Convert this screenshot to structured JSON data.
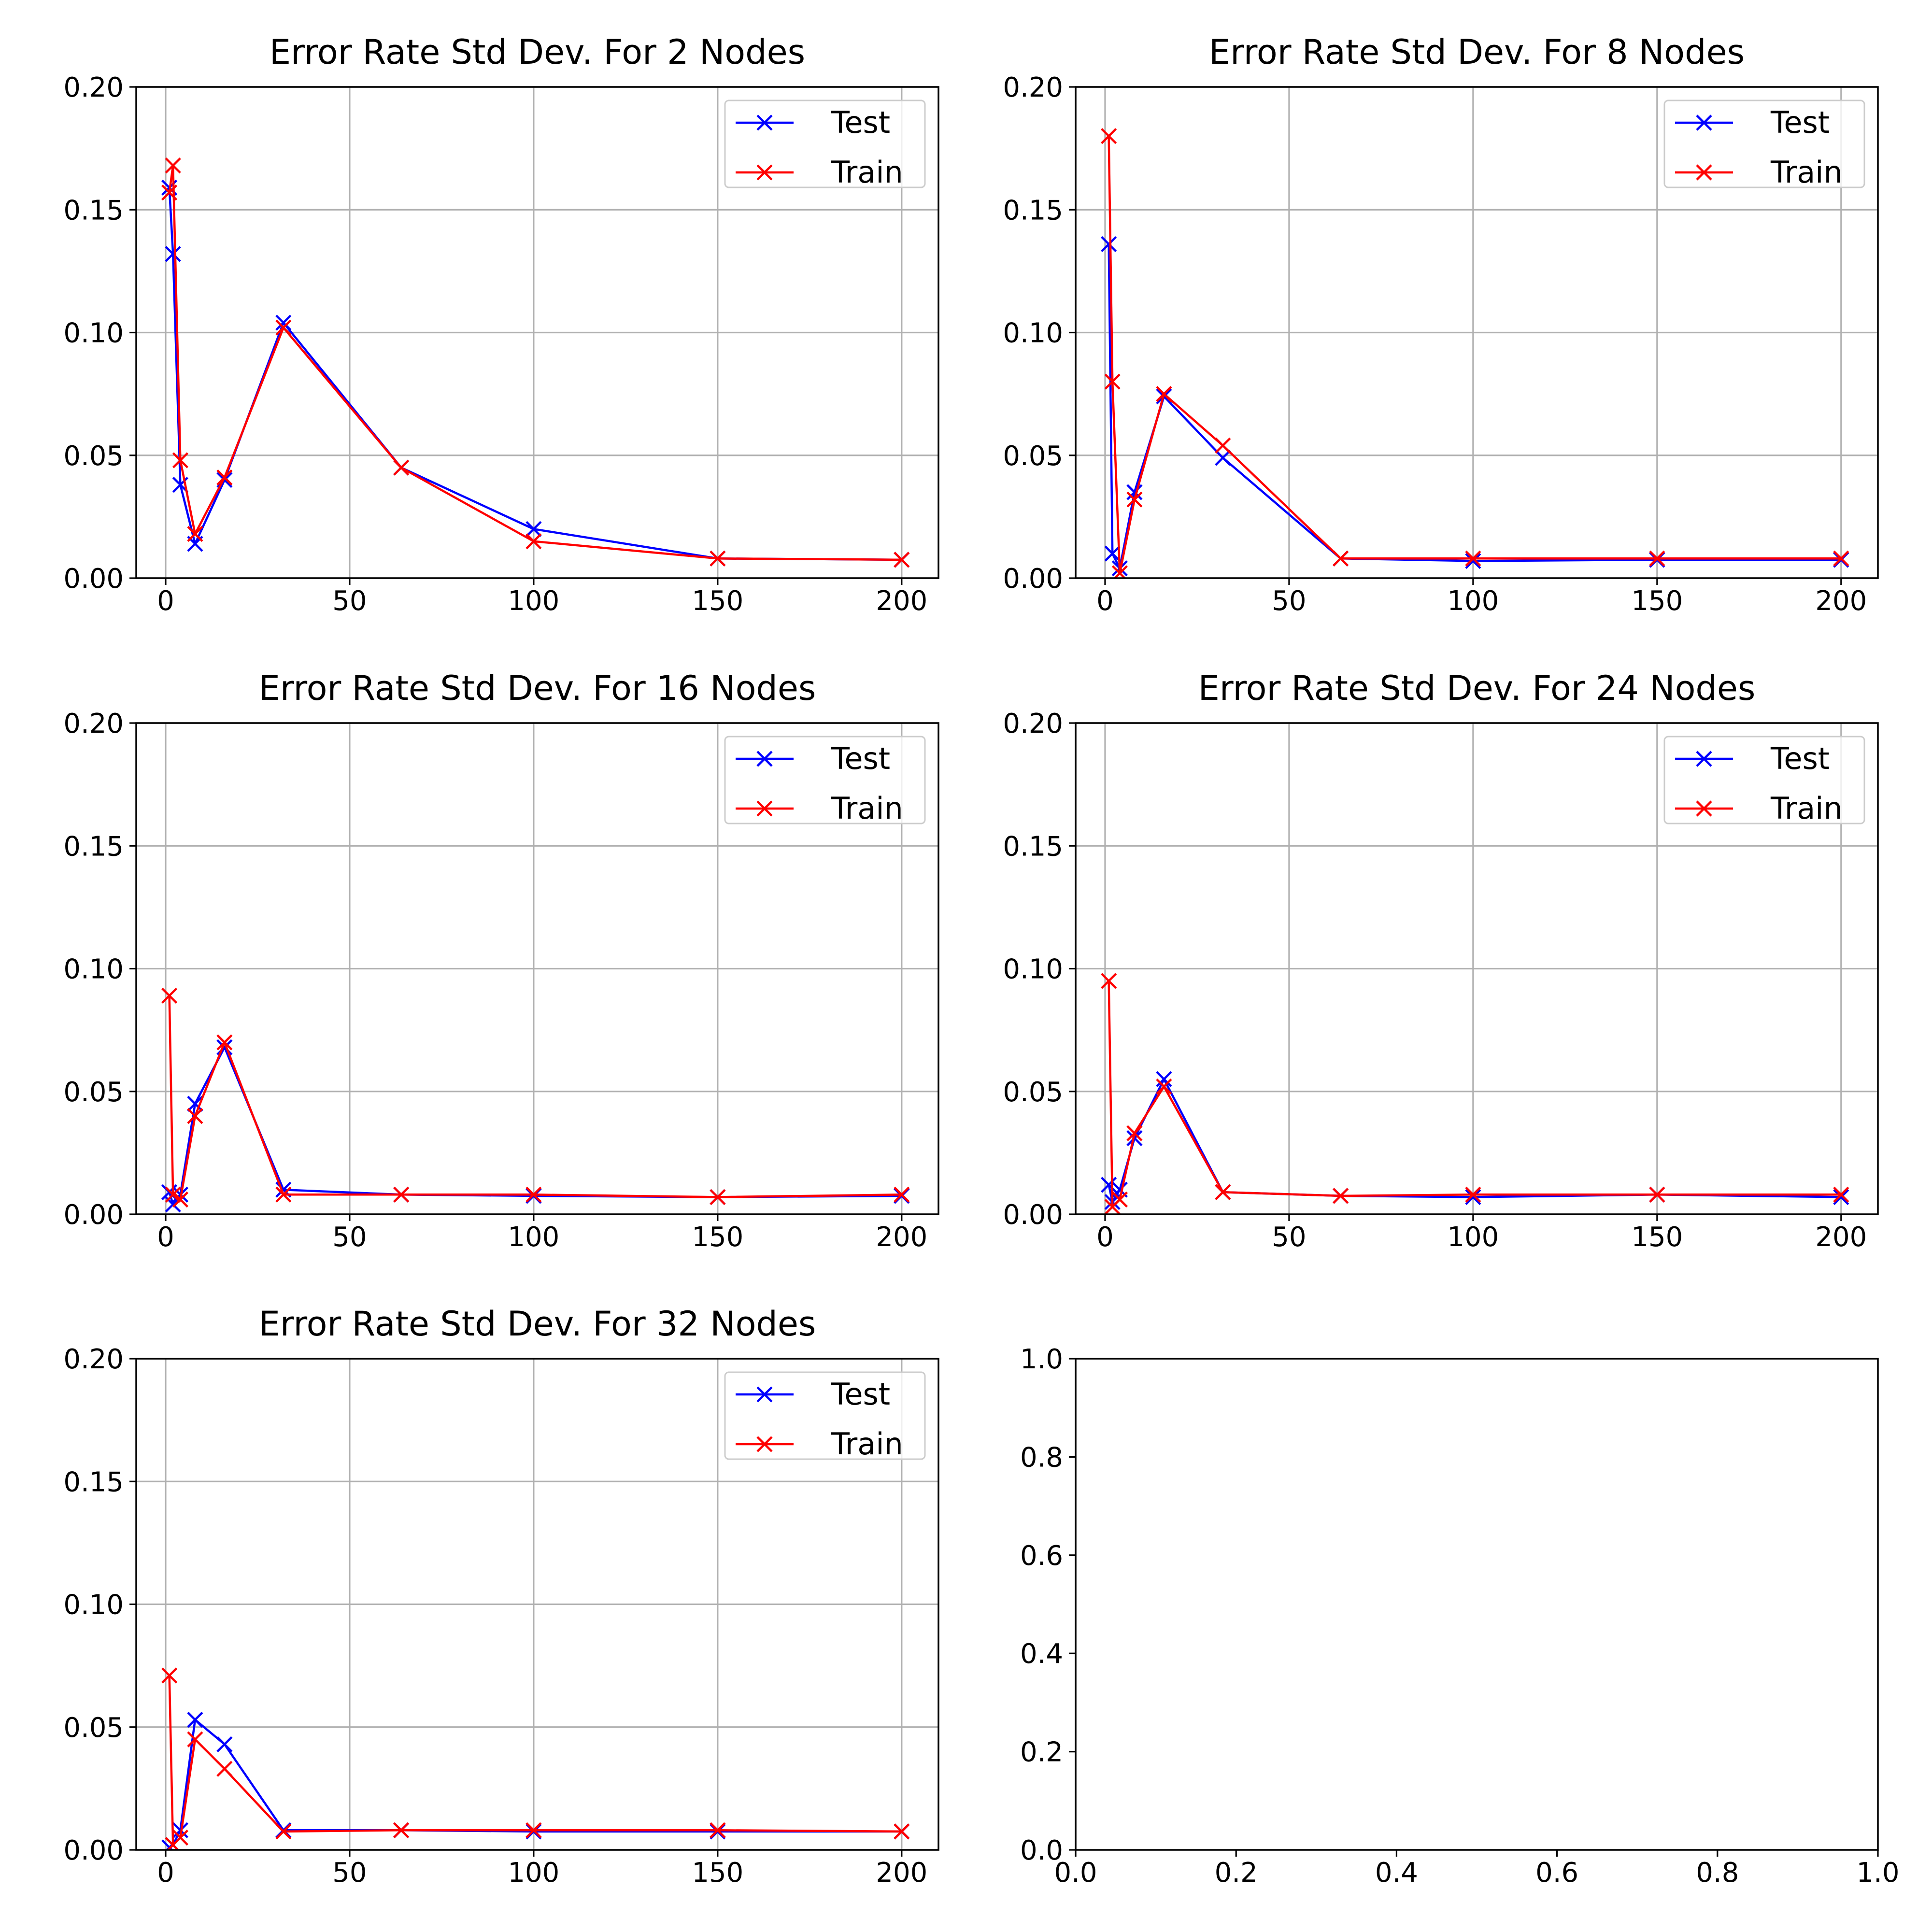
{
  "colors": {
    "test": "#0000ff",
    "train": "#ff0000",
    "grid": "#b0b0b0",
    "frame": "#000000"
  },
  "chart_data": [
    {
      "type": "line",
      "title": "Error Rate Std Dev. For 2 Nodes",
      "xlim": [
        -8,
        210
      ],
      "ylim": [
        0,
        0.2
      ],
      "xticks": [
        0,
        50,
        100,
        150,
        200
      ],
      "xtick_labels": [
        "0",
        "50",
        "100",
        "150",
        "200"
      ],
      "yticks": [
        0,
        0.05,
        0.1,
        0.15,
        0.2
      ],
      "ytick_labels": [
        "0.00",
        "0.05",
        "0.10",
        "0.15",
        "0.20"
      ],
      "grid": true,
      "legend": "upper-right",
      "marker": "x",
      "series": [
        {
          "name": "Test",
          "color": "#0000ff",
          "x": [
            1,
            2,
            4,
            8,
            16,
            32,
            64,
            100,
            150,
            200
          ],
          "y": [
            0.159,
            0.132,
            0.038,
            0.014,
            0.04,
            0.104,
            0.045,
            0.02,
            0.008,
            0.0075
          ]
        },
        {
          "name": "Train",
          "color": "#ff0000",
          "x": [
            1,
            2,
            4,
            8,
            16,
            32,
            64,
            100,
            150,
            200
          ],
          "y": [
            0.157,
            0.168,
            0.048,
            0.018,
            0.041,
            0.102,
            0.045,
            0.015,
            0.008,
            0.0075
          ]
        }
      ]
    },
    {
      "type": "line",
      "title": "Error Rate Std Dev. For 8 Nodes",
      "xlim": [
        -8,
        210
      ],
      "ylim": [
        0,
        0.2
      ],
      "xticks": [
        0,
        50,
        100,
        150,
        200
      ],
      "xtick_labels": [
        "0",
        "50",
        "100",
        "150",
        "200"
      ],
      "yticks": [
        0,
        0.05,
        0.1,
        0.15,
        0.2
      ],
      "ytick_labels": [
        "0.00",
        "0.05",
        "0.10",
        "0.15",
        "0.20"
      ],
      "grid": true,
      "legend": "upper-right",
      "marker": "x",
      "series": [
        {
          "name": "Test",
          "color": "#0000ff",
          "x": [
            1,
            2,
            4,
            8,
            16,
            32,
            64,
            100,
            150,
            200
          ],
          "y": [
            0.136,
            0.01,
            0.004,
            0.035,
            0.074,
            0.049,
            0.008,
            0.007,
            0.0075,
            0.0075
          ]
        },
        {
          "name": "Train",
          "color": "#ff0000",
          "x": [
            1,
            2,
            4,
            8,
            16,
            32,
            64,
            100,
            150,
            200
          ],
          "y": [
            0.18,
            0.08,
            0.002,
            0.032,
            0.075,
            0.054,
            0.008,
            0.008,
            0.008,
            0.008
          ]
        }
      ]
    },
    {
      "type": "line",
      "title": "Error Rate Std Dev. For 16 Nodes",
      "xlim": [
        -8,
        210
      ],
      "ylim": [
        0,
        0.2
      ],
      "xticks": [
        0,
        50,
        100,
        150,
        200
      ],
      "xtick_labels": [
        "0",
        "50",
        "100",
        "150",
        "200"
      ],
      "yticks": [
        0,
        0.05,
        0.1,
        0.15,
        0.2
      ],
      "ytick_labels": [
        "0.00",
        "0.05",
        "0.10",
        "0.15",
        "0.20"
      ],
      "grid": true,
      "legend": "upper-right",
      "marker": "x",
      "series": [
        {
          "name": "Test",
          "color": "#0000ff",
          "x": [
            1,
            2,
            4,
            8,
            16,
            32,
            64,
            100,
            150,
            200
          ],
          "y": [
            0.009,
            0.004,
            0.008,
            0.045,
            0.068,
            0.01,
            0.008,
            0.0075,
            0.007,
            0.0075
          ]
        },
        {
          "name": "Train",
          "color": "#ff0000",
          "x": [
            1,
            2,
            4,
            8,
            16,
            32,
            64,
            100,
            150,
            200
          ],
          "y": [
            0.089,
            0.008,
            0.006,
            0.04,
            0.07,
            0.008,
            0.008,
            0.008,
            0.007,
            0.008
          ]
        }
      ]
    },
    {
      "type": "line",
      "title": "Error Rate Std Dev. For 24 Nodes",
      "xlim": [
        -8,
        210
      ],
      "ylim": [
        0,
        0.2
      ],
      "xticks": [
        0,
        50,
        100,
        150,
        200
      ],
      "xtick_labels": [
        "0",
        "50",
        "100",
        "150",
        "200"
      ],
      "yticks": [
        0,
        0.05,
        0.1,
        0.15,
        0.2
      ],
      "ytick_labels": [
        "0.00",
        "0.05",
        "0.10",
        "0.15",
        "0.20"
      ],
      "grid": true,
      "legend": "upper-right",
      "marker": "x",
      "series": [
        {
          "name": "Test",
          "color": "#0000ff",
          "x": [
            1,
            2,
            4,
            8,
            16,
            32,
            64,
            100,
            150,
            200
          ],
          "y": [
            0.012,
            0.005,
            0.01,
            0.031,
            0.055,
            0.009,
            0.0075,
            0.007,
            0.008,
            0.007
          ]
        },
        {
          "name": "Train",
          "color": "#ff0000",
          "x": [
            1,
            2,
            4,
            8,
            16,
            32,
            64,
            100,
            150,
            200
          ],
          "y": [
            0.095,
            0.003,
            0.006,
            0.033,
            0.052,
            0.009,
            0.0075,
            0.008,
            0.008,
            0.008
          ]
        }
      ]
    },
    {
      "type": "line",
      "title": "Error Rate Std Dev. For 32 Nodes",
      "xlim": [
        -8,
        210
      ],
      "ylim": [
        0,
        0.2
      ],
      "xticks": [
        0,
        50,
        100,
        150,
        200
      ],
      "xtick_labels": [
        "0",
        "50",
        "100",
        "150",
        "200"
      ],
      "yticks": [
        0,
        0.05,
        0.1,
        0.15,
        0.2
      ],
      "ytick_labels": [
        "0.00",
        "0.05",
        "0.10",
        "0.15",
        "0.20"
      ],
      "grid": true,
      "legend": "upper-right",
      "marker": "x",
      "series": [
        {
          "name": "Test",
          "color": "#0000ff",
          "x": [
            1,
            2,
            4,
            8,
            16,
            32,
            64,
            100,
            150,
            200
          ],
          "y": [
            0.001,
            0.002,
            0.008,
            0.053,
            0.043,
            0.008,
            0.008,
            0.0075,
            0.0075,
            0.0075
          ]
        },
        {
          "name": "Train",
          "color": "#ff0000",
          "x": [
            1,
            2,
            4,
            8,
            16,
            32,
            64,
            100,
            150,
            200
          ],
          "y": [
            0.071,
            0.002,
            0.005,
            0.045,
            0.033,
            0.0075,
            0.008,
            0.008,
            0.008,
            0.0075
          ]
        }
      ]
    },
    {
      "type": "line",
      "title": "",
      "xlim": [
        0,
        1
      ],
      "ylim": [
        0,
        1
      ],
      "xticks": [
        0,
        0.2,
        0.4,
        0.6,
        0.8,
        1.0
      ],
      "xtick_labels": [
        "0.0",
        "0.2",
        "0.4",
        "0.6",
        "0.8",
        "1.0"
      ],
      "yticks": [
        0,
        0.2,
        0.4,
        0.6,
        0.8,
        1.0
      ],
      "ytick_labels": [
        "0.0",
        "0.2",
        "0.4",
        "0.6",
        "0.8",
        "1.0"
      ],
      "grid": false,
      "legend": "none",
      "marker": "x",
      "series": []
    }
  ]
}
